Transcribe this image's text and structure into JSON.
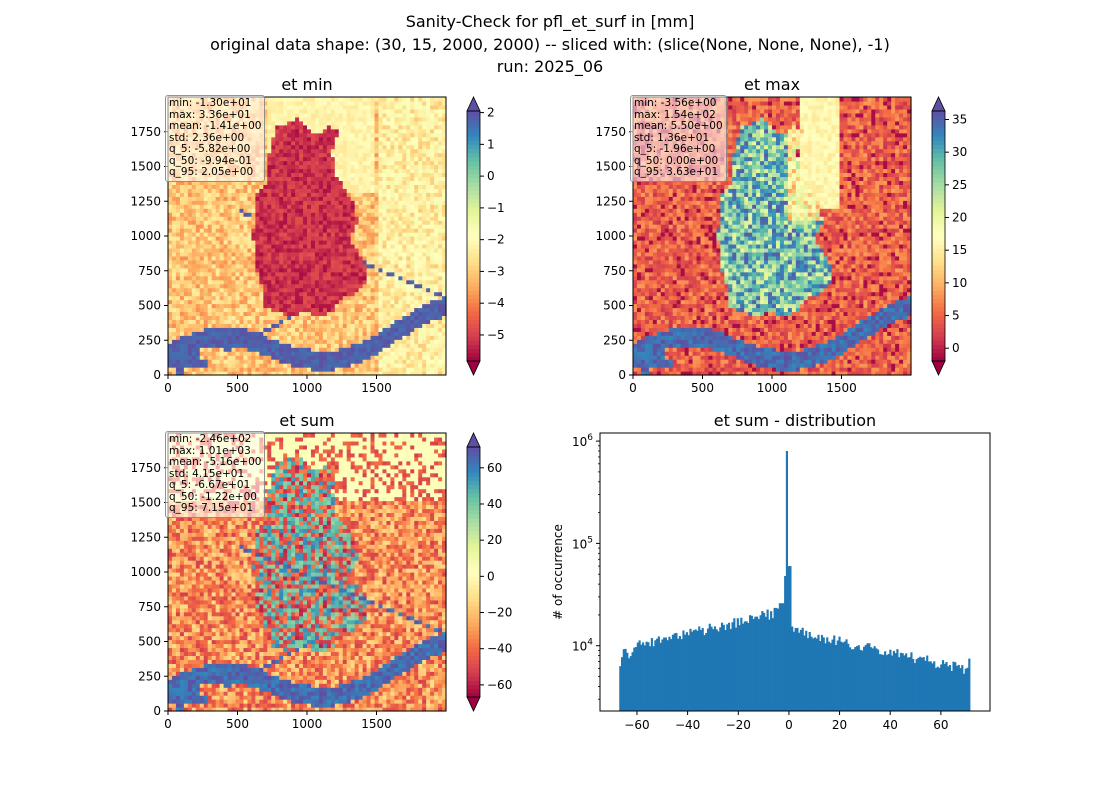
{
  "figure": {
    "title_lines": [
      "Sanity-Check for pfl_et_surf in [mm]",
      "original data shape: (30, 15, 2000, 2000) -- sliced with: (slice(None, None, None), -1)",
      "run: 2025_06"
    ]
  },
  "colors": {
    "hist_bar": "#1f77b4",
    "spectral_low": "#9e0142",
    "spectral_high": "#5e4fa2"
  },
  "chart_data": [
    {
      "type": "heatmap",
      "title": "et min",
      "colormap": "Spectral",
      "x_ticks": [
        "0",
        "500",
        "1000",
        "1500"
      ],
      "y_ticks": [
        "0",
        "250",
        "500",
        "750",
        "1000",
        "1250",
        "1500",
        "1750"
      ],
      "colorbar_ticks": [
        "2",
        "1",
        "0",
        "−1",
        "−2",
        "−3",
        "−4",
        "−5"
      ],
      "colorbar_range": [
        -5.82,
        2.05
      ],
      "stats": [
        "min: -1.30e+01",
        "max: 3.36e+01",
        "mean: -1.41e+00",
        "std: 2.36e+00",
        "q_5: -5.82e+00",
        "q_50: -9.94e-01",
        "q_95: 2.05e+00"
      ]
    },
    {
      "type": "heatmap",
      "title": "et max",
      "colormap": "Spectral",
      "x_ticks": [
        "0",
        "500",
        "1000",
        "1500"
      ],
      "y_ticks": [
        "0",
        "250",
        "500",
        "750",
        "1000",
        "1250",
        "1500",
        "1750"
      ],
      "colorbar_ticks": [
        "35",
        "30",
        "25",
        "20",
        "15",
        "10",
        "5",
        "0"
      ],
      "colorbar_range": [
        -1.96,
        36.3
      ],
      "stats": [
        "min: -3.56e+00",
        "max: 1.54e+02",
        "mean: 5.50e+00",
        "std: 1.36e+01",
        "q_5: -1.96e+00",
        "q_50: 0.00e+00",
        "q_95: 3.63e+01"
      ]
    },
    {
      "type": "heatmap",
      "title": "et sum",
      "colormap": "Spectral",
      "x_ticks": [
        "0",
        "500",
        "1000",
        "1500"
      ],
      "y_ticks": [
        "0",
        "250",
        "500",
        "750",
        "1000",
        "1250",
        "1500",
        "1750"
      ],
      "colorbar_ticks": [
        "60",
        "40",
        "20",
        "0",
        "−20",
        "−40",
        "−60"
      ],
      "colorbar_range": [
        -66.7,
        71.5
      ],
      "stats": [
        "min: -2.46e+02",
        "max: 1.01e+03",
        "mean: -5.16e+00",
        "std: 4.15e+01",
        "q_5: -6.67e+01",
        "q_50: -1.22e+00",
        "q_95: 7.15e+01"
      ]
    },
    {
      "type": "bar",
      "title": "et sum - distribution",
      "ylabel": "# of occurrence",
      "xlabel": "",
      "yscale": "log",
      "xlim": [
        -74.6,
        79.4
      ],
      "ylim": [
        2300,
        1200000
      ],
      "x_ticks": [
        "−60",
        "−40",
        "−20",
        "0",
        "20",
        "40",
        "60"
      ],
      "y_ticks": [
        "10^4",
        "10^5",
        "10^6"
      ],
      "bin_range": [
        -67,
        71.5
      ],
      "key_values": [
        {
          "x": -66.5,
          "y": 6500
        },
        {
          "x": -60,
          "y": 10000
        },
        {
          "x": -50,
          "y": 12500
        },
        {
          "x": -40,
          "y": 14500
        },
        {
          "x": -20,
          "y": 17500
        },
        {
          "x": -10,
          "y": 20000
        },
        {
          "x": -5,
          "y": 23000
        },
        {
          "x": -1,
          "y": 50000
        },
        {
          "x": -0.5,
          "y": 800000
        },
        {
          "x": 0.3,
          "y": 60000
        },
        {
          "x": 5,
          "y": 14000
        },
        {
          "x": 20,
          "y": 11000
        },
        {
          "x": 40,
          "y": 8000
        },
        {
          "x": 60,
          "y": 5500
        },
        {
          "x": 70,
          "y": 3300
        },
        {
          "x": 71,
          "y": 6800
        }
      ]
    }
  ]
}
